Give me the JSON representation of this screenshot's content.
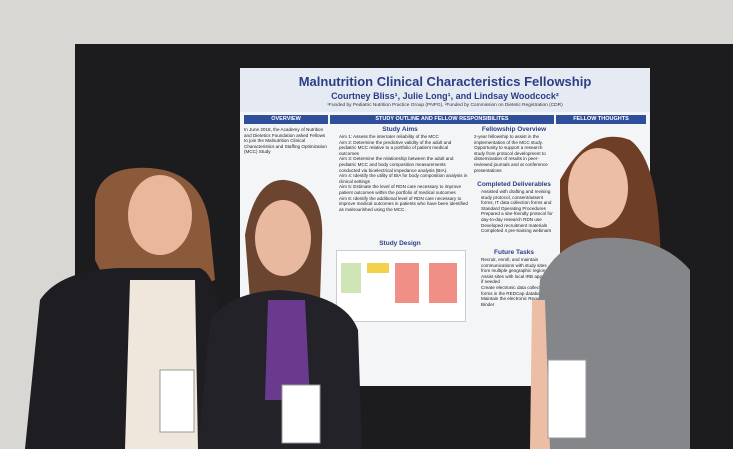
{
  "poster": {
    "title": "Malnutrition Clinical Characteristics Fellowship",
    "authors": "Courtney Bliss¹, Julie Long¹, and Lindsay Woodcock²",
    "funding": "¹Funded by Pediatric Nutrition Practice Group (PNPG), ²Funded by Commission on Dietetic Registration (CDR)",
    "headers": [
      "OVERVIEW",
      "STUDY OUTLINE AND FELLOW RESPONSIBILITES",
      "FELLOW THOUGHTS"
    ],
    "overview": "In June 2018, the Academy of Nutrition and Dietetics Foundation asked Fellows to join the Malnutrition Clinical Characteristics and Staffing Optimization (MCC) Study",
    "study_aims": {
      "heading": "Study Aims",
      "items": [
        "Aim 1: Assess the interrater reliability of the MCC",
        "Aim 2: Determine the predictive validity of the adult and pediatric MCC relative to a portfolio of patient medical outcomes",
        "Aim 3: Determine the relationship between the adult and pediatric MCC and body composition measurements conducted via bioelectrical impedance analysis (BIA).",
        "Aim 4: Identify the utility of BIA for body composition analysis in clinical settings",
        "Aim 5: Estimate the level of RDN care necessary to improve patient outcomes within the portfolio of medical outcomes",
        "Aim 6: Identify the additional level of RDN care necessary to improve medical outcomes in patients who have been identified as malnourished using the MCC."
      ]
    },
    "study_design": "Study Design",
    "fellowship_overview": {
      "heading": "Fellowship Overview",
      "text": "2-year fellowship to assist in the implementation of the MCC study. Opportunity to support a research study from protocol development to dissemination of results in peer-reviewed journals and at conference presentations"
    },
    "completed_deliverables": {
      "heading": "Completed Deliverables",
      "items": [
        "Assisted with drafting and revising study protocol, consent/assent forms, IT data collection forms and Standard Operating Procedures",
        "Prepared a site-friendly protocol for day-to-day research RDN use",
        "Developed recruitment materials",
        "Completed 4 pre-training webinars"
      ]
    },
    "future_tasks": {
      "heading": "Future Tasks",
      "items": [
        "Recruit, enroll, and maintain communications with study sites from multiple geographic regions",
        "Assist sites with local IRB approval, if needed",
        "Create electronic data collection forms in the REDCap database",
        "Maintain the electronic Regulatory Binder"
      ]
    }
  }
}
